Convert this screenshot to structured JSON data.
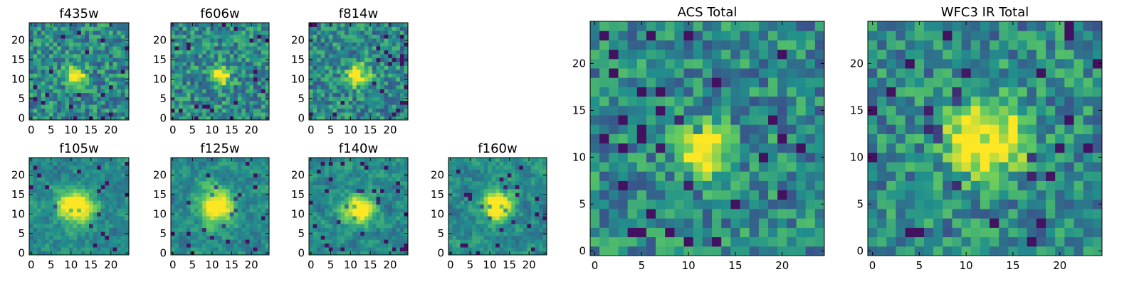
{
  "figure": {
    "colormap": [
      "#440154",
      "#3b528b",
      "#21918c",
      "#5ec962",
      "#fde725"
    ]
  },
  "chart_data": [
    {
      "type": "heatmap",
      "title": "f435w",
      "size": 25,
      "xlim": [
        0,
        24
      ],
      "ylim": [
        0,
        24
      ],
      "xticks": [
        0,
        5,
        10,
        15,
        20
      ],
      "yticks": [
        0,
        5,
        10,
        15,
        20
      ],
      "source_center": [
        11,
        11
      ],
      "source_radius": 1.6
    },
    {
      "type": "heatmap",
      "title": "f606w",
      "size": 25,
      "xlim": [
        0,
        24
      ],
      "ylim": [
        0,
        24
      ],
      "xticks": [
        0,
        5,
        10,
        15,
        20
      ],
      "yticks": [
        0,
        5,
        10,
        15,
        20
      ],
      "source_center": [
        12,
        11
      ],
      "source_radius": 1.6
    },
    {
      "type": "heatmap",
      "title": "f814w",
      "size": 25,
      "xlim": [
        0,
        24
      ],
      "ylim": [
        0,
        24
      ],
      "xticks": [
        0,
        5,
        10,
        15,
        20
      ],
      "yticks": [
        0,
        5,
        10,
        15,
        20
      ],
      "source_center": [
        12,
        11
      ],
      "source_radius": 1.8
    },
    {
      "type": "heatmap",
      "title": "f105w",
      "size": 25,
      "xlim": [
        0,
        24
      ],
      "ylim": [
        0,
        24
      ],
      "xticks": [
        0,
        5,
        10,
        15,
        20
      ],
      "yticks": [
        0,
        5,
        10,
        15,
        20
      ],
      "source_center": [
        11,
        12
      ],
      "source_radius": 3.0
    },
    {
      "type": "heatmap",
      "title": "f125w",
      "size": 25,
      "xlim": [
        0,
        24
      ],
      "ylim": [
        0,
        24
      ],
      "xticks": [
        0,
        5,
        10,
        15,
        20
      ],
      "yticks": [
        0,
        5,
        10,
        15,
        20
      ],
      "source_center": [
        11,
        12
      ],
      "source_radius": 3.0
    },
    {
      "type": "heatmap",
      "title": "f140w",
      "size": 25,
      "xlim": [
        0,
        24
      ],
      "ylim": [
        0,
        24
      ],
      "xticks": [
        0,
        5,
        10,
        15,
        20
      ],
      "yticks": [
        0,
        5,
        10,
        15,
        20
      ],
      "source_center": [
        12,
        11
      ],
      "source_radius": 2.5
    },
    {
      "type": "heatmap",
      "title": "f160w",
      "size": 25,
      "xlim": [
        0,
        24
      ],
      "ylim": [
        0,
        24
      ],
      "xticks": [
        0,
        5,
        10,
        15,
        20
      ],
      "yticks": [
        0,
        5,
        10,
        15,
        20
      ],
      "source_center": [
        12,
        12
      ],
      "source_radius": 2.5
    },
    {
      "type": "heatmap",
      "title": "ACS Total",
      "size": 25,
      "xlim": [
        0,
        24
      ],
      "ylim": [
        0,
        24
      ],
      "xticks": [
        0,
        5,
        10,
        15,
        20
      ],
      "yticks": [
        0,
        5,
        10,
        15,
        20
      ],
      "source_center": [
        11.5,
        11
      ],
      "source_radius": 1.8
    },
    {
      "type": "heatmap",
      "title": "WFC3 IR Total",
      "size": 25,
      "xlim": [
        0,
        24
      ],
      "ylim": [
        0,
        24
      ],
      "xticks": [
        0,
        5,
        10,
        15,
        20
      ],
      "yticks": [
        0,
        5,
        10,
        15,
        20
      ],
      "source_center": [
        12,
        12
      ],
      "source_radius": 2.8
    }
  ]
}
